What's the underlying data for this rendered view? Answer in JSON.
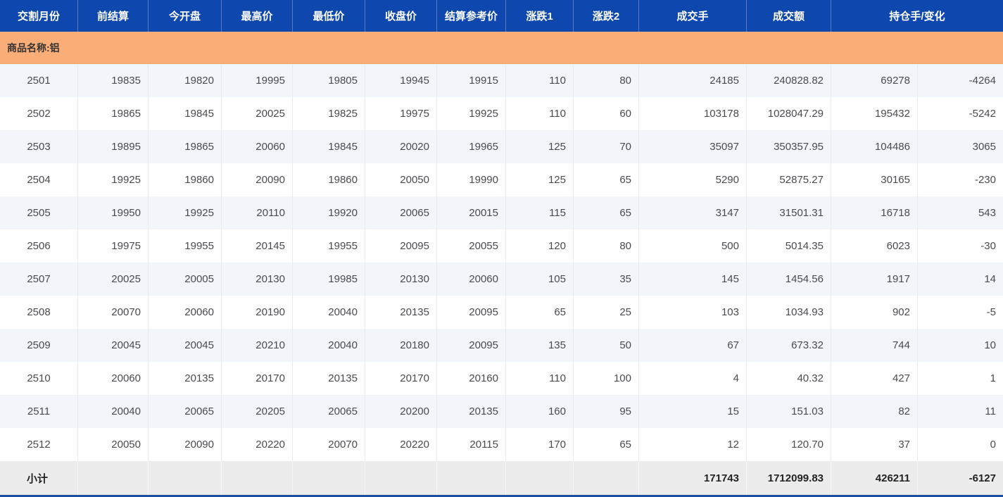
{
  "table": {
    "header_columns": [
      {
        "key": "delivery-month",
        "label": "交割月份"
      },
      {
        "key": "prev-settlement",
        "label": "前结算"
      },
      {
        "key": "open",
        "label": "今开盘"
      },
      {
        "key": "high",
        "label": "最高价"
      },
      {
        "key": "low",
        "label": "最低价"
      },
      {
        "key": "close",
        "label": "收盘价"
      },
      {
        "key": "settlement-ref",
        "label": "结算参考价"
      },
      {
        "key": "change1",
        "label": "涨跌1"
      },
      {
        "key": "change2",
        "label": "涨跌2"
      },
      {
        "key": "volume",
        "label": "成交手"
      },
      {
        "key": "turnover",
        "label": "成交额"
      },
      {
        "key": "oi-and-change",
        "label": "持仓手/变化"
      }
    ],
    "body_col_keys": [
      "delivery-month",
      "prev-settlement",
      "open",
      "high",
      "low",
      "close",
      "settlement-ref",
      "change1",
      "change2",
      "volume",
      "turnover",
      "open-interest",
      "oi-change"
    ],
    "group_label": "商品名称:铝",
    "rows": [
      [
        "2501",
        "19835",
        "19820",
        "19995",
        "19805",
        "19945",
        "19915",
        "110",
        "80",
        "24185",
        "240828.82",
        "69278",
        "-4264"
      ],
      [
        "2502",
        "19865",
        "19845",
        "20025",
        "19825",
        "19975",
        "19925",
        "110",
        "60",
        "103178",
        "1028047.29",
        "195432",
        "-5242"
      ],
      [
        "2503",
        "19895",
        "19865",
        "20060",
        "19845",
        "20020",
        "19965",
        "125",
        "70",
        "35097",
        "350357.95",
        "104486",
        "3065"
      ],
      [
        "2504",
        "19925",
        "19860",
        "20090",
        "19860",
        "20050",
        "19990",
        "125",
        "65",
        "5290",
        "52875.27",
        "30165",
        "-230"
      ],
      [
        "2505",
        "19950",
        "19925",
        "20110",
        "19920",
        "20065",
        "20015",
        "115",
        "65",
        "3147",
        "31501.31",
        "16718",
        "543"
      ],
      [
        "2506",
        "19975",
        "19955",
        "20145",
        "19955",
        "20095",
        "20055",
        "120",
        "80",
        "500",
        "5014.35",
        "6023",
        "-30"
      ],
      [
        "2507",
        "20025",
        "20005",
        "20130",
        "19985",
        "20130",
        "20060",
        "105",
        "35",
        "145",
        "1454.56",
        "1917",
        "14"
      ],
      [
        "2508",
        "20070",
        "20060",
        "20190",
        "20040",
        "20135",
        "20095",
        "65",
        "25",
        "103",
        "1034.93",
        "902",
        "-5"
      ],
      [
        "2509",
        "20045",
        "20045",
        "20210",
        "20040",
        "20180",
        "20095",
        "135",
        "50",
        "67",
        "673.32",
        "744",
        "10"
      ],
      [
        "2510",
        "20060",
        "20135",
        "20170",
        "20135",
        "20170",
        "20160",
        "110",
        "100",
        "4",
        "40.32",
        "427",
        "1"
      ],
      [
        "2511",
        "20040",
        "20065",
        "20205",
        "20065",
        "20200",
        "20135",
        "160",
        "95",
        "15",
        "151.03",
        "82",
        "11"
      ],
      [
        "2512",
        "20050",
        "20090",
        "20220",
        "20070",
        "20220",
        "20115",
        "170",
        "65",
        "12",
        "120.70",
        "37",
        "0"
      ]
    ],
    "footer_cells": [
      "小计",
      "",
      "",
      "",
      "",
      "",
      "",
      "",
      "",
      "171743",
      "1712099.83",
      "426211",
      "-6127"
    ]
  },
  "colors": {
    "header_bg": "#0E47AE",
    "header_separator": "#5C79BC",
    "group_band": "#FBAD77",
    "row_alt": "#F2F5FA",
    "row_plain": "#FFFFFF",
    "cell_separator": "#E9EBF2",
    "data_text": "#4A4A4F",
    "footer_bg": "#ECECEC",
    "bottom_bar": "#1D4FA1"
  }
}
